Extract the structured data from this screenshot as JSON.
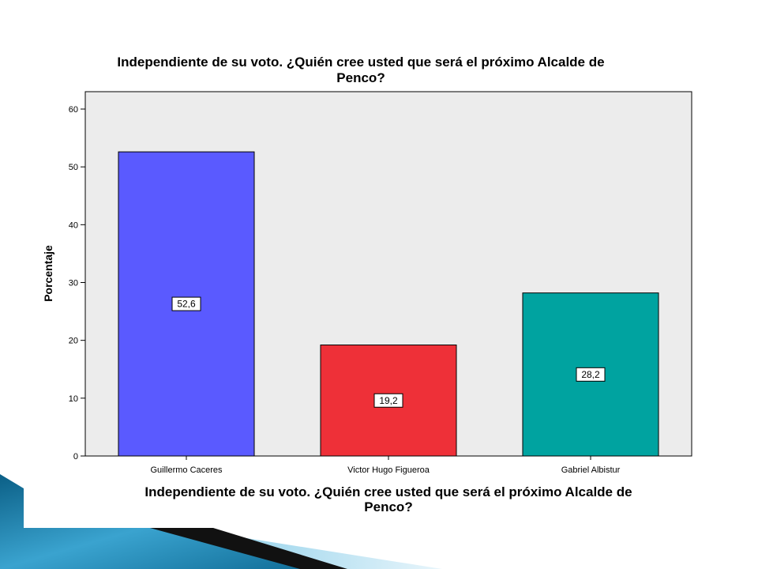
{
  "chart_data": {
    "type": "bar",
    "title": "Independiente de su voto. ¿Quién cree usted que será el próximo Alcalde de Penco?",
    "title_lines": [
      "Independiente de su voto. ¿Quién cree usted que será el próximo Alcalde de",
      "Penco?"
    ],
    "xlabel": "Independiente de su voto. ¿Quién cree usted que será el próximo Alcalde de Penco?",
    "xlabel_lines": [
      "Independiente de su voto. ¿Quién cree usted que será el próximo Alcalde de",
      "Penco?"
    ],
    "ylabel": "Porcentaje",
    "categories": [
      "Guillermo Caceres",
      "Victor Hugo Figueroa",
      "Gabriel Albistur"
    ],
    "values": [
      52.6,
      19.2,
      28.2
    ],
    "data_labels": [
      "52,6",
      "19,2",
      "28,2"
    ],
    "colors": [
      "#5a5aff",
      "#ee3038",
      "#00a3a0"
    ],
    "ylim": [
      0,
      60
    ],
    "yticks": [
      0,
      10,
      20,
      30,
      40,
      50,
      60
    ],
    "grid": false,
    "legend": "none",
    "plot_background": "#ececec"
  }
}
